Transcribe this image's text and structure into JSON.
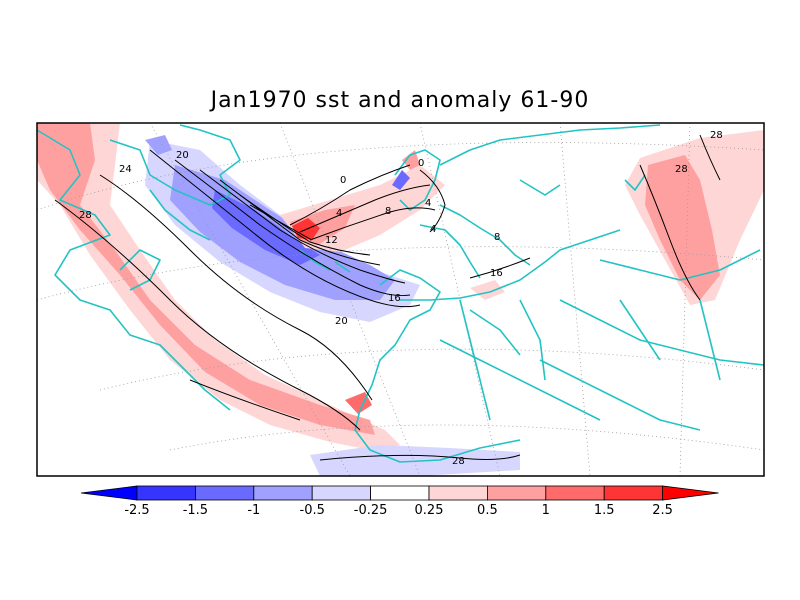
{
  "title": "Jan1970 sst and anomaly 61-90",
  "colors": {
    "coast": "#23c3c3",
    "contour": "#000000",
    "frame": "#000000"
  },
  "contours": {
    "levels": [
      "24",
      "20",
      "28",
      "0",
      "4",
      "8",
      "12",
      "16",
      "20",
      "0",
      "4",
      "8",
      "4",
      "16",
      "28",
      "28",
      "28"
    ]
  },
  "colorbar": {
    "low_extend_color": "#0000ff",
    "high_extend_color": "#ff0000",
    "bins": [
      {
        "color": "#3535ff"
      },
      {
        "color": "#6a6aff"
      },
      {
        "color": "#a0a0ff"
      },
      {
        "color": "#d6d6ff"
      },
      {
        "color": "#ffffff"
      },
      {
        "color": "#ffd6d6"
      },
      {
        "color": "#ffa0a0"
      },
      {
        "color": "#ff6a6a"
      },
      {
        "color": "#ff3535"
      }
    ],
    "labels": [
      "-2.5",
      "-1.5",
      "-1",
      "-0.5",
      "-0.25",
      "0.25",
      "0.5",
      "1",
      "1.5",
      "2.5"
    ]
  }
}
